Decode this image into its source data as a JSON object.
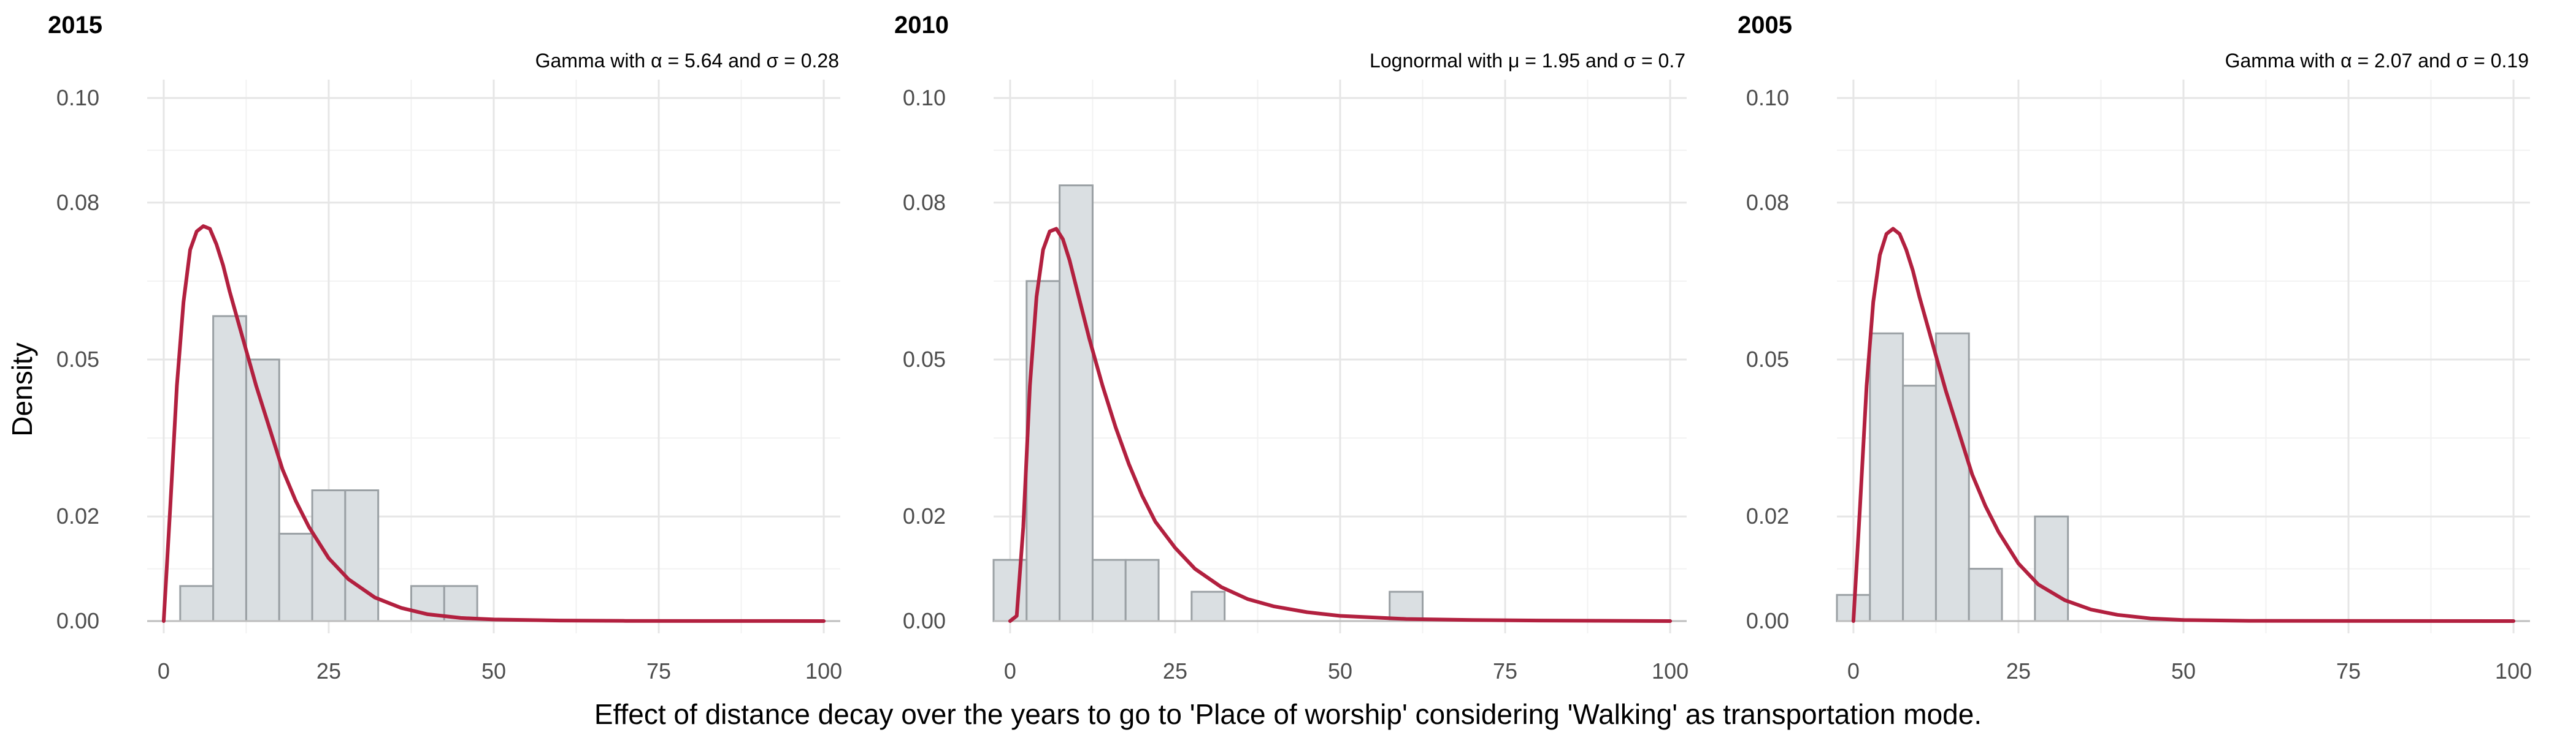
{
  "chart_data": {
    "type": "bar",
    "ylabel": "Density",
    "xlabel": "Effect of distance decay over the years to go to 'Place of worship' considering 'Walking' as transportation mode.",
    "x_ticks": [
      0,
      25,
      50,
      75,
      100
    ],
    "y_ticks": [
      0.0,
      0.02,
      0.05,
      0.08,
      0.1
    ],
    "y_tick_labels": [
      "0.00",
      "0.02",
      "0.05",
      "0.08",
      "0.10"
    ],
    "xlim": [
      -2.5,
      102.5
    ],
    "ylim": [
      0,
      0.1
    ],
    "panels": [
      {
        "title": "2015",
        "annotation": "Gamma with α = 5.64 and σ = 0.28",
        "bin_width": 5,
        "bins": [
          {
            "start": 2.5,
            "value": 0.0067
          },
          {
            "start": 7.5,
            "value": 0.0583
          },
          {
            "start": 12.5,
            "value": 0.05
          },
          {
            "start": 17.5,
            "value": 0.0167
          },
          {
            "start": 22.5,
            "value": 0.025
          },
          {
            "start": 27.5,
            "value": 0.025
          },
          {
            "start": 37.5,
            "value": 0.0067
          },
          {
            "start": 42.5,
            "value": 0.0067
          }
        ],
        "fit_curve": [
          [
            0,
            0
          ],
          [
            1,
            0.022
          ],
          [
            2,
            0.045
          ],
          [
            3,
            0.061
          ],
          [
            4,
            0.071
          ],
          [
            5,
            0.0745
          ],
          [
            6,
            0.0755
          ],
          [
            7,
            0.075
          ],
          [
            8,
            0.072
          ],
          [
            9,
            0.068
          ],
          [
            10,
            0.063
          ],
          [
            12,
            0.054
          ],
          [
            14,
            0.045
          ],
          [
            16,
            0.037
          ],
          [
            18,
            0.029
          ],
          [
            20,
            0.023
          ],
          [
            22,
            0.018
          ],
          [
            25,
            0.012
          ],
          [
            28,
            0.008
          ],
          [
            32,
            0.0045
          ],
          [
            36,
            0.0025
          ],
          [
            40,
            0.0013
          ],
          [
            45,
            0.0006
          ],
          [
            50,
            0.0003
          ],
          [
            60,
            0.0001
          ],
          [
            70,
            3e-05
          ],
          [
            100,
            0
          ]
        ]
      },
      {
        "title": "2010",
        "annotation": "Lognormal with μ = 1.95 and σ = 0.7",
        "bin_width": 5,
        "bins": [
          {
            "start": -2.5,
            "value": 0.0117
          },
          {
            "start": 2.5,
            "value": 0.065
          },
          {
            "start": 7.5,
            "value": 0.0833
          },
          {
            "start": 12.5,
            "value": 0.0117
          },
          {
            "start": 17.5,
            "value": 0.0117
          },
          {
            "start": 27.5,
            "value": 0.0056
          },
          {
            "start": 57.5,
            "value": 0.0056
          }
        ],
        "fit_curve": [
          [
            0,
            0
          ],
          [
            1,
            0.001
          ],
          [
            2,
            0.018
          ],
          [
            3,
            0.045
          ],
          [
            4,
            0.062
          ],
          [
            5,
            0.071
          ],
          [
            6,
            0.0745
          ],
          [
            7,
            0.075
          ],
          [
            8,
            0.073
          ],
          [
            9,
            0.069
          ],
          [
            10,
            0.064
          ],
          [
            12,
            0.054
          ],
          [
            14,
            0.045
          ],
          [
            16,
            0.037
          ],
          [
            18,
            0.03
          ],
          [
            20,
            0.024
          ],
          [
            22,
            0.019
          ],
          [
            25,
            0.014
          ],
          [
            28,
            0.01
          ],
          [
            32,
            0.0065
          ],
          [
            36,
            0.0042
          ],
          [
            40,
            0.0028
          ],
          [
            45,
            0.0017
          ],
          [
            50,
            0.001
          ],
          [
            60,
            0.0004
          ],
          [
            70,
            0.0002
          ],
          [
            80,
            0.0001
          ],
          [
            100,
            0
          ]
        ]
      },
      {
        "title": "2005",
        "annotation": "Gamma with α = 2.07 and σ = 0.19",
        "bin_width": 5,
        "bins": [
          {
            "start": -2.5,
            "value": 0.005
          },
          {
            "start": 2.5,
            "value": 0.055
          },
          {
            "start": 7.5,
            "value": 0.045
          },
          {
            "start": 12.5,
            "value": 0.055
          },
          {
            "start": 17.5,
            "value": 0.01
          },
          {
            "start": 27.5,
            "value": 0.02
          }
        ],
        "fit_curve": [
          [
            0,
            0
          ],
          [
            1,
            0.022
          ],
          [
            2,
            0.045
          ],
          [
            3,
            0.061
          ],
          [
            4,
            0.07
          ],
          [
            5,
            0.074
          ],
          [
            6,
            0.075
          ],
          [
            7,
            0.074
          ],
          [
            8,
            0.071
          ],
          [
            9,
            0.067
          ],
          [
            10,
            0.062
          ],
          [
            12,
            0.053
          ],
          [
            14,
            0.044
          ],
          [
            16,
            0.036
          ],
          [
            18,
            0.028
          ],
          [
            20,
            0.022
          ],
          [
            22,
            0.017
          ],
          [
            25,
            0.011
          ],
          [
            28,
            0.007
          ],
          [
            32,
            0.004
          ],
          [
            36,
            0.0022
          ],
          [
            40,
            0.0012
          ],
          [
            45,
            0.0005
          ],
          [
            50,
            0.0002
          ],
          [
            60,
            5e-05
          ],
          [
            100,
            0
          ]
        ]
      }
    ]
  }
}
